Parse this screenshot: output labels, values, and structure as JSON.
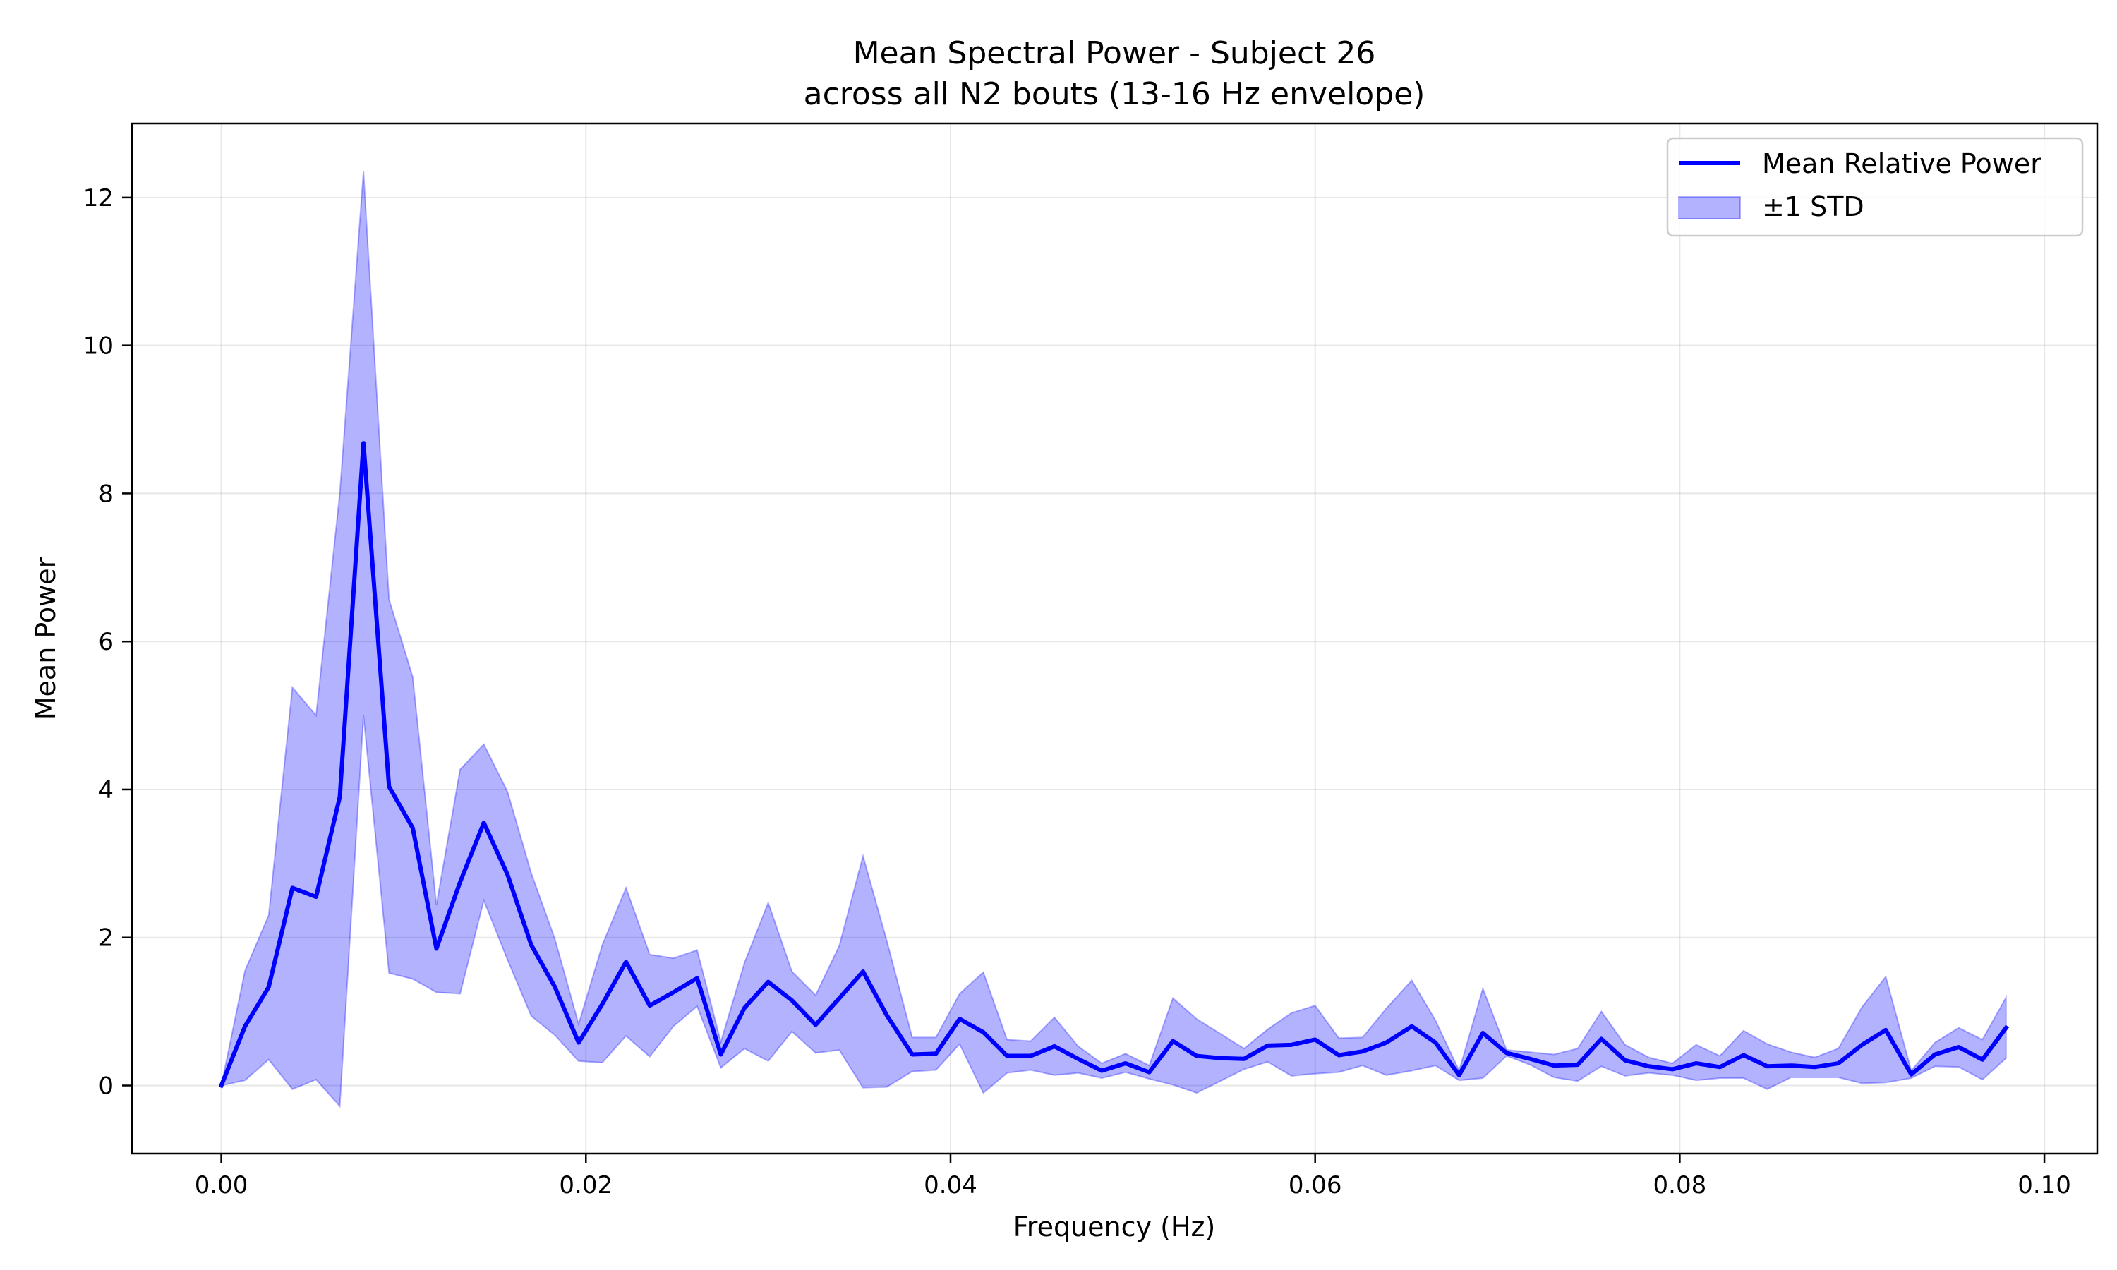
{
  "chart_data": {
    "type": "line",
    "title": "Mean Spectral Power - Subject 26",
    "subtitle": "across all N2 bouts (13-16 Hz envelope)",
    "xlabel": "Frequency (Hz)",
    "ylabel": "Mean Power",
    "xlim": [
      -0.0049,
      0.1029
    ],
    "ylim": [
      -0.92,
      13.0
    ],
    "xticks": [
      0.0,
      0.02,
      0.04,
      0.06,
      0.08,
      0.1
    ],
    "xtick_labels": [
      "0.00",
      "0.02",
      "0.04",
      "0.06",
      "0.08",
      "0.10"
    ],
    "yticks": [
      0,
      2,
      4,
      6,
      8,
      10,
      12
    ],
    "ytick_labels": [
      "0",
      "2",
      "4",
      "6",
      "8",
      "10",
      "12"
    ],
    "grid": true,
    "legend_position": "top-right",
    "series": [
      {
        "name": "Mean Relative Power",
        "kind": "line",
        "color": "#0000ff",
        "x": [
          0.0,
          0.0013,
          0.0026,
          0.0039,
          0.0052,
          0.0065,
          0.0078,
          0.0092,
          0.0105,
          0.0118,
          0.0131,
          0.0144,
          0.0157,
          0.017,
          0.0183,
          0.0196,
          0.0209,
          0.0222,
          0.0235,
          0.0248,
          0.0261,
          0.0274,
          0.0287,
          0.03,
          0.0313,
          0.0326,
          0.0339,
          0.0352,
          0.0365,
          0.0379,
          0.0392,
          0.0405,
          0.0418,
          0.0431,
          0.0444,
          0.0457,
          0.047,
          0.0483,
          0.0496,
          0.0509,
          0.0522,
          0.0535,
          0.0548,
          0.0561,
          0.0574,
          0.0587,
          0.06,
          0.0613,
          0.0626,
          0.0639,
          0.0653,
          0.0666,
          0.0679,
          0.0692,
          0.0705,
          0.0718,
          0.0731,
          0.0744,
          0.0757,
          0.077,
          0.0783,
          0.0796,
          0.0809,
          0.0822,
          0.0835,
          0.0848,
          0.0861,
          0.0874,
          0.0887,
          0.09,
          0.0913,
          0.0927,
          0.094,
          0.0953,
          0.0966,
          0.0979
        ],
        "values": [
          0.0,
          0.8,
          1.33,
          2.67,
          2.55,
          3.9,
          8.68,
          4.04,
          3.48,
          1.85,
          2.75,
          3.55,
          2.85,
          1.9,
          1.33,
          0.58,
          1.1,
          1.67,
          1.08,
          1.26,
          1.45,
          0.42,
          1.05,
          1.4,
          1.15,
          0.82,
          1.18,
          1.54,
          0.95,
          0.42,
          0.43,
          0.9,
          0.72,
          0.4,
          0.4,
          0.53,
          0.36,
          0.2,
          0.3,
          0.18,
          0.6,
          0.4,
          0.37,
          0.36,
          0.54,
          0.55,
          0.62,
          0.41,
          0.46,
          0.58,
          0.8,
          0.58,
          0.14,
          0.71,
          0.44,
          0.36,
          0.27,
          0.28,
          0.63,
          0.34,
          0.26,
          0.22,
          0.3,
          0.25,
          0.41,
          0.26,
          0.27,
          0.25,
          0.3,
          0.55,
          0.75,
          0.15,
          0.42,
          0.52,
          0.35,
          0.78
        ]
      },
      {
        "name": "±1 STD",
        "kind": "band",
        "color": "#0000ff",
        "upper": [
          0.0,
          1.55,
          2.3,
          5.38,
          5.0,
          8.0,
          12.35,
          6.57,
          5.52,
          2.44,
          4.27,
          4.61,
          3.97,
          2.87,
          1.98,
          0.83,
          1.9,
          2.67,
          1.77,
          1.72,
          1.83,
          0.59,
          1.66,
          2.47,
          1.54,
          1.22,
          1.89,
          3.1,
          1.96,
          0.65,
          0.65,
          1.24,
          1.53,
          0.62,
          0.6,
          0.92,
          0.53,
          0.3,
          0.43,
          0.27,
          1.18,
          0.9,
          0.7,
          0.5,
          0.76,
          0.98,
          1.08,
          0.64,
          0.65,
          1.04,
          1.42,
          0.88,
          0.2,
          1.31,
          0.48,
          0.45,
          0.42,
          0.5,
          1.0,
          0.55,
          0.38,
          0.3,
          0.55,
          0.4,
          0.74,
          0.56,
          0.45,
          0.38,
          0.5,
          1.06,
          1.47,
          0.2,
          0.58,
          0.78,
          0.62,
          1.19
        ],
        "lower": [
          0.0,
          0.07,
          0.35,
          -0.05,
          0.08,
          -0.28,
          5.0,
          1.52,
          1.44,
          1.26,
          1.24,
          2.5,
          1.7,
          0.94,
          0.68,
          0.33,
          0.31,
          0.67,
          0.39,
          0.8,
          1.07,
          0.24,
          0.5,
          0.33,
          0.73,
          0.44,
          0.48,
          -0.03,
          -0.02,
          0.19,
          0.21,
          0.56,
          -0.1,
          0.17,
          0.21,
          0.14,
          0.17,
          0.1,
          0.18,
          0.09,
          0.01,
          -0.1,
          0.06,
          0.22,
          0.32,
          0.13,
          0.16,
          0.18,
          0.27,
          0.14,
          0.2,
          0.27,
          0.07,
          0.1,
          0.4,
          0.28,
          0.11,
          0.06,
          0.26,
          0.13,
          0.17,
          0.14,
          0.07,
          0.1,
          0.1,
          -0.05,
          0.11,
          0.11,
          0.11,
          0.03,
          0.04,
          0.1,
          0.26,
          0.25,
          0.08,
          0.37
        ]
      }
    ]
  }
}
